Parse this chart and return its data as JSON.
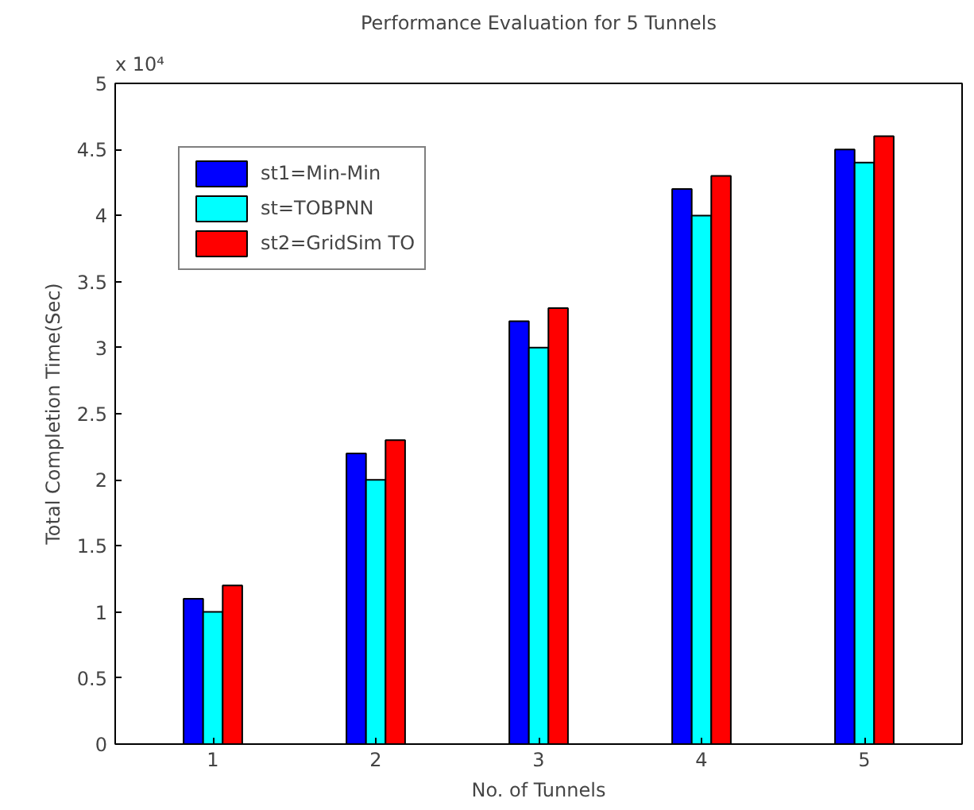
{
  "chart_data": {
    "type": "bar",
    "title": "Performance Evaluation for 5 Tunnels",
    "xlabel": "No. of Tunnels",
    "ylabel": "Total Completion Time(Sec)",
    "categories": [
      "1",
      "2",
      "3",
      "4",
      "5"
    ],
    "series": [
      {
        "name": "st1=Min-Min",
        "color": "#0000ff",
        "values": [
          1.1,
          2.2,
          3.2,
          4.2,
          4.5
        ]
      },
      {
        "name": "st=TOBPNN",
        "color": "#00ffff",
        "values": [
          1.0,
          2.0,
          3.0,
          4.0,
          4.4
        ]
      },
      {
        "name": "st2=GridSim TO",
        "color": "#ff0000",
        "values": [
          1.2,
          2.3,
          3.3,
          4.3,
          4.6
        ]
      }
    ],
    "ylim": [
      0,
      5
    ],
    "yticks": [
      0,
      0.5,
      1,
      1.5,
      2,
      2.5,
      3,
      3.5,
      4,
      4.5,
      5
    ],
    "annotations": [
      "x 10⁴"
    ],
    "legend": "top left",
    "grid": false
  }
}
